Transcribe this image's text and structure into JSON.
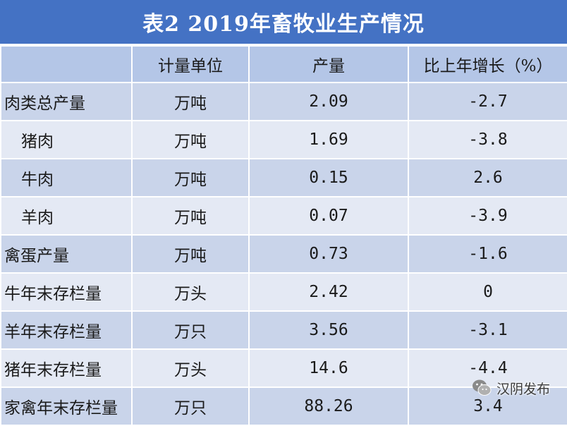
{
  "title": "表2  2019年畜牧业生产情况",
  "table": {
    "headers": [
      "",
      "计量单位",
      "产量",
      "比上年增长（%）"
    ],
    "rows": [
      {
        "item": "肉类总产量",
        "unit": "万吨",
        "output": "2.09",
        "growth": "-2.7",
        "indent": false
      },
      {
        "item": "猪肉",
        "unit": "万吨",
        "output": "1.69",
        "growth": "-3.8",
        "indent": true
      },
      {
        "item": "牛肉",
        "unit": "万吨",
        "output": "0.15",
        "growth": "2.6",
        "indent": true
      },
      {
        "item": "羊肉",
        "unit": "万吨",
        "output": "0.07",
        "growth": "-3.9",
        "indent": true
      },
      {
        "item": "禽蛋产量",
        "unit": "万吨",
        "output": "0.73",
        "growth": "-1.6",
        "indent": false
      },
      {
        "item": "牛年末存栏量",
        "unit": "万头",
        "output": "2.42",
        "growth": "0",
        "indent": false
      },
      {
        "item": "羊年末存栏量",
        "unit": "万只",
        "output": "3.56",
        "growth": "-3.1",
        "indent": false
      },
      {
        "item": "猪年末存栏量",
        "unit": "万头",
        "output": "14.6",
        "growth": "-4.4",
        "indent": false
      },
      {
        "item": "家禽年末存栏量",
        "unit": "万只",
        "output": "88.26",
        "growth": "3.4",
        "indent": false
      }
    ]
  },
  "watermark": {
    "text": "汉阴发布",
    "icon": "wechat-icon"
  },
  "colors": {
    "title_bg": "#4472c4",
    "header_bg": "#b4c6e7",
    "row_dark": "#c9d4ea",
    "row_light": "#e4e9f4"
  }
}
